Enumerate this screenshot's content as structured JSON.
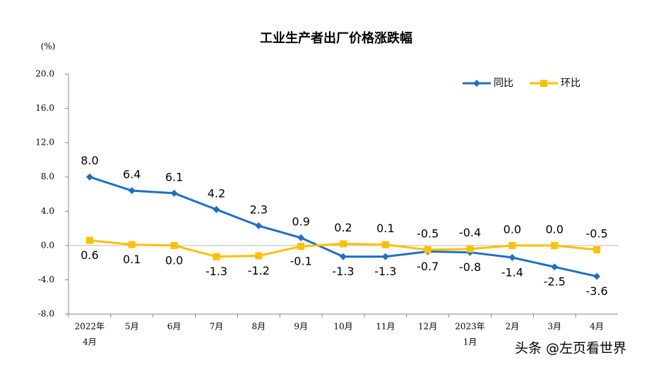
{
  "chart_data": {
    "type": "line",
    "title": "工业生产者出厂价格涨跌幅",
    "y_unit": "(%)",
    "categories": [
      [
        "2022年",
        "4月"
      ],
      [
        "5月"
      ],
      [
        "6月"
      ],
      [
        "7月"
      ],
      [
        "8月"
      ],
      [
        "9月"
      ],
      [
        "10月"
      ],
      [
        "11月"
      ],
      [
        "12月"
      ],
      [
        "2023年",
        "1月"
      ],
      [
        "2月"
      ],
      [
        "3月"
      ],
      [
        "4月"
      ]
    ],
    "series": [
      {
        "name": "同比",
        "color": "#1f6fc6",
        "marker": "diamond",
        "values": [
          8.0,
          6.4,
          6.1,
          4.2,
          2.3,
          0.9,
          -1.3,
          -1.3,
          -0.7,
          -0.8,
          -1.4,
          -2.5,
          -3.6
        ],
        "value_labels": [
          "8.0",
          "6.4",
          "6.1",
          "4.2",
          "2.3",
          "0.9",
          "-1.3",
          "-1.3",
          "-0.7",
          "-0.8",
          "-1.4",
          "-2.5",
          "-3.6"
        ]
      },
      {
        "name": "环比",
        "color": "#ffc000",
        "marker": "square",
        "values": [
          0.6,
          0.1,
          0.0,
          -1.3,
          -1.2,
          -0.1,
          0.2,
          0.1,
          -0.5,
          -0.4,
          0.0,
          0.0,
          -0.5
        ],
        "value_labels": [
          "0.6",
          "0.1",
          "0.0",
          "-1.3",
          "-1.2",
          "-0.1",
          "0.2",
          "0.1",
          "-0.5",
          "-0.4",
          "0.0",
          "0.0",
          "-0.5"
        ]
      }
    ],
    "ylim": [
      -8,
      20
    ],
    "yticks": [
      {
        "value": -8,
        "label": "-8.0"
      },
      {
        "value": -4,
        "label": "-4.0"
      },
      {
        "value": 0,
        "label": "0.0"
      },
      {
        "value": 4,
        "label": "4.0"
      },
      {
        "value": 8,
        "label": "8.0"
      },
      {
        "value": 12,
        "label": "12.0"
      },
      {
        "value": 16,
        "label": "16.0"
      },
      {
        "value": 20,
        "label": "20.0"
      }
    ],
    "grid": false,
    "legend": "top-right",
    "watermark": "头条 @左页看世界"
  }
}
